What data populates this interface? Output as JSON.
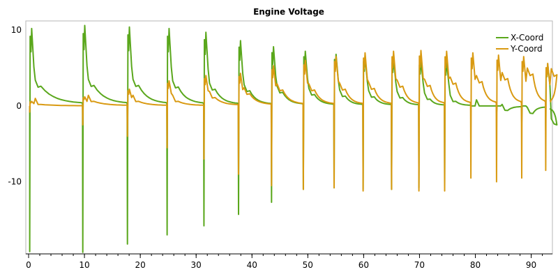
{
  "chart_data": {
    "type": "line",
    "title": "Engine Voltage",
    "xlabel": "",
    "ylabel": "",
    "xlim": [
      -0.5,
      93.8
    ],
    "ylim": [
      -19.5,
      11.2
    ],
    "x_ticks": [
      0,
      10,
      20,
      30,
      40,
      50,
      60,
      70,
      80,
      90
    ],
    "y_ticks": [
      10,
      0,
      -10
    ],
    "x_minor_step": 2,
    "grid": false,
    "legend_position": "top-right",
    "pulse_events": [
      {
        "t": 0.2,
        "x_peak": 10.2,
        "x_min": -19.2,
        "x_tail": 2.6,
        "y_peak": 0.6,
        "y_min": -0.8,
        "y_tail": 0.2
      },
      {
        "t": 9.7,
        "x_peak": 10.6,
        "x_min": -19.3,
        "x_tail": 2.7,
        "y_peak": 1.2,
        "y_min": -2.5,
        "y_tail": 0.6
      },
      {
        "t": 17.7,
        "x_peak": 10.4,
        "x_min": -18.2,
        "x_tail": 2.7,
        "y_peak": 2.2,
        "y_min": -4.0,
        "y_tail": 0.6
      },
      {
        "t": 24.8,
        "x_peak": 10.2,
        "x_min": -17.0,
        "x_tail": 2.5,
        "y_peak": 3.3,
        "y_min": -5.5,
        "y_tail": 0.6
      },
      {
        "t": 31.4,
        "x_peak": 9.7,
        "x_min": -15.8,
        "x_tail": 2.2,
        "y_peak": 4.0,
        "y_min": -7.0,
        "y_tail": 1.1
      },
      {
        "t": 37.6,
        "x_peak": 8.6,
        "x_min": -14.3,
        "x_tail": 2.0,
        "y_peak": 4.3,
        "y_min": -9.0,
        "y_tail": 1.6
      },
      {
        "t": 43.5,
        "x_peak": 7.8,
        "x_min": -12.7,
        "x_tail": 1.8,
        "y_peak": 5.3,
        "y_min": -10.5,
        "y_tail": 2.1
      },
      {
        "t": 49.2,
        "x_peak": 7.2,
        "x_min": -11.0,
        "x_tail": 1.5,
        "y_peak": 6.0,
        "y_min": -11.0,
        "y_tail": 2.1
      },
      {
        "t": 54.7,
        "x_peak": 6.8,
        "x_min": -10.8,
        "x_tail": 1.3,
        "y_peak": 6.5,
        "y_min": -10.8,
        "y_tail": 2.2
      },
      {
        "t": 59.9,
        "x_peak": 6.5,
        "x_min": -11.0,
        "x_tail": 1.2,
        "y_peak": 7.0,
        "y_min": -11.2,
        "y_tail": 2.3
      },
      {
        "t": 65.0,
        "x_peak": 6.3,
        "x_min": -11.0,
        "x_tail": 1.1,
        "y_peak": 7.2,
        "y_min": -11.0,
        "y_tail": 2.6
      },
      {
        "t": 69.9,
        "x_peak": 6.0,
        "x_min": -10.8,
        "x_tail": 0.9,
        "y_peak": 7.3,
        "y_min": -11.2,
        "y_tail": 2.7
      },
      {
        "t": 74.5,
        "x_peak": 5.8,
        "x_min": -10.8,
        "x_tail": 0.6,
        "y_peak": 7.2,
        "y_min": -11.2,
        "y_tail": 3.0
      },
      {
        "t": 79.2,
        "x_peak": 0.0,
        "x_min": 0.0,
        "x_tail": 0.0,
        "y_peak": 7.0,
        "y_min": -9.5,
        "y_tail": 3.2
      },
      {
        "t": 83.8,
        "x_peak": 0.0,
        "x_min": -1.0,
        "x_tail": -0.6,
        "y_peak": 6.7,
        "y_min": -10.0,
        "y_tail": 3.6
      },
      {
        "t": 88.3,
        "x_peak": 0.0,
        "x_min": -2.2,
        "x_tail": -1.0,
        "y_peak": 6.5,
        "y_min": -9.5,
        "y_tail": 4.2
      },
      {
        "t": 92.6,
        "x_peak": 5.5,
        "x_min": -3.2,
        "x_tail": -2.5,
        "y_peak": 5.6,
        "y_min": -8.5,
        "y_tail": 4.1
      }
    ],
    "series": [
      {
        "name": "X-Coord",
        "color": "#5aa71c",
        "key": "x"
      },
      {
        "name": "Y-Coord",
        "color": "#d99a12",
        "key": "y"
      }
    ]
  }
}
